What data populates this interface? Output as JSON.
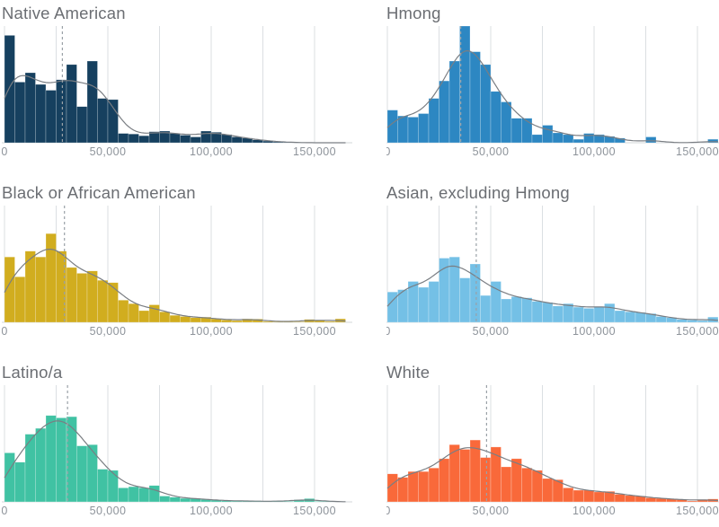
{
  "page": {
    "background": "#ffffff"
  },
  "style": {
    "gridline_color": "#dbdfe2",
    "baseline_color": "#d3d7da",
    "density_curve_color": "#7a7e83",
    "median_line_color": "#9aa1a7",
    "tick_label_color": "#8d939a",
    "title_color": "#6b6e73",
    "bar_seam_color": "rgba(255,255,255,0.5)"
  },
  "axis": {
    "bin_width": 5000,
    "bin_start": 0,
    "gridline_values": [
      0,
      25000,
      50000,
      75000,
      100000,
      125000,
      150000
    ],
    "ticks": [
      {
        "value": 0,
        "label": "0"
      },
      {
        "value": 50000,
        "label": "50,000"
      },
      {
        "value": 100000,
        "label": "100,000"
      },
      {
        "value": 150000,
        "label": "150,000"
      }
    ]
  },
  "chart_data": [
    {
      "type": "histogram_with_density",
      "title": "Native American",
      "color": "#16405f",
      "bin_width": 5000,
      "bin_start": 0,
      "x_range": [
        0,
        168000
      ],
      "median_dashed_line_x": 28000,
      "bar_heights_relative": [
        0.92,
        0.52,
        0.6,
        0.5,
        0.45,
        0.54,
        0.67,
        0.31,
        0.7,
        0.38,
        0.37,
        0.08,
        0.075,
        0.06,
        0.095,
        0.1,
        0.08,
        0.065,
        0.05,
        0.1,
        0.09,
        0.07,
        0.05,
        0.04,
        0.025,
        0.015,
        0.008,
        0.005,
        0,
        0,
        0,
        0,
        0
      ]
    },
    {
      "type": "histogram_with_density",
      "title": "Hmong",
      "color": "#2d87c2",
      "bin_width": 5000,
      "bin_start": 0,
      "x_range": [
        0,
        160000
      ],
      "median_dashed_line_x": 35500,
      "bar_heights_relative": [
        0.28,
        0.23,
        0.22,
        0.25,
        0.38,
        0.53,
        0.7,
        1.0,
        0.78,
        0.67,
        0.44,
        0.35,
        0.21,
        0.21,
        0.07,
        0.15,
        0.085,
        0.07,
        0.03,
        0.08,
        0.07,
        0.055,
        0.04,
        0,
        0,
        0.05,
        0,
        0,
        0,
        0,
        0,
        0.03
      ]
    },
    {
      "type": "histogram_with_density",
      "title": "Black or African American",
      "color": "#d1ad1f",
      "bin_width": 5000,
      "bin_start": 0,
      "x_range": [
        0,
        168000
      ],
      "median_dashed_line_x": 29000,
      "bar_heights_relative": [
        0.56,
        0.39,
        0.61,
        0.56,
        0.76,
        0.61,
        0.47,
        0.42,
        0.44,
        0.36,
        0.34,
        0.19,
        0.16,
        0.1,
        0.15,
        0.09,
        0.06,
        0.05,
        0.04,
        0.045,
        0.03,
        0.02,
        0.015,
        0.03,
        0.028,
        0.008,
        0.005,
        0.005,
        0.005,
        0.025,
        0.018,
        0.008,
        0.03
      ]
    },
    {
      "type": "histogram_with_density",
      "title": "Asian, excluding Hmong",
      "color": "#74c0e6",
      "bin_width": 5000,
      "bin_start": 0,
      "x_range": [
        0,
        160000
      ],
      "median_dashed_line_x": 43000,
      "bar_heights_relative": [
        0.26,
        0.28,
        0.35,
        0.3,
        0.35,
        0.55,
        0.56,
        0.38,
        0.5,
        0.23,
        0.35,
        0.2,
        0.22,
        0.21,
        0.18,
        0.17,
        0.14,
        0.16,
        0.13,
        0.12,
        0.13,
        0.16,
        0.1,
        0.09,
        0.085,
        0.075,
        0.05,
        0.04,
        0.025,
        0.02,
        0.015,
        0.045
      ]
    },
    {
      "type": "histogram_with_density",
      "title": "Latino/a",
      "color": "#40c2a3",
      "bin_width": 5000,
      "bin_start": 0,
      "x_range": [
        0,
        168000
      ],
      "median_dashed_line_x": 30500,
      "bar_heights_relative": [
        0.42,
        0.34,
        0.58,
        0.63,
        0.74,
        0.72,
        0.73,
        0.48,
        0.49,
        0.28,
        0.27,
        0.12,
        0.13,
        0.12,
        0.14,
        0.05,
        0.04,
        0.03,
        0.03,
        0.02,
        0.015,
        0.01,
        0.008,
        0.008,
        0.005,
        0.005,
        0.005,
        0.005,
        0.018,
        0.028,
        0.005,
        0.005,
        0
      ]
    },
    {
      "type": "histogram_with_density",
      "title": "White",
      "color": "#f9693a",
      "bin_width": 5000,
      "bin_start": 0,
      "x_range": [
        0,
        160000
      ],
      "median_dashed_line_x": 48000,
      "bar_heights_relative": [
        0.24,
        0.21,
        0.26,
        0.26,
        0.29,
        0.37,
        0.49,
        0.45,
        0.53,
        0.38,
        0.47,
        0.3,
        0.37,
        0.29,
        0.27,
        0.2,
        0.19,
        0.12,
        0.1,
        0.1,
        0.085,
        0.09,
        0.065,
        0.055,
        0.05,
        0.035,
        0.03,
        0.025,
        0.02,
        0.008,
        0.02,
        0.025
      ]
    }
  ]
}
